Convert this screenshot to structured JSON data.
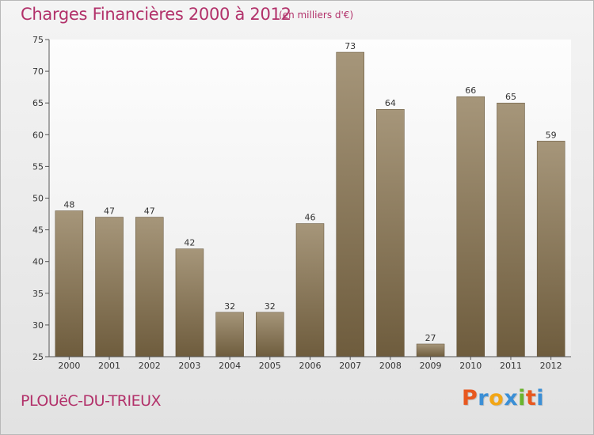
{
  "header": {
    "title": "Charges Financières 2000 à 2012",
    "subtitle": "(en milliers d'€)"
  },
  "footer": {
    "commune": "PLOUëC-DU-TRIEUX",
    "logo_text": "Proxiti"
  },
  "colors": {
    "title": "#b2316a",
    "bar_top": "#a6967a",
    "bar_bottom": "#6e5c3d",
    "logo_letters": [
      "#e8581f",
      "#3b8fd6",
      "#f2a616",
      "#3b8fd6",
      "#6ab42d",
      "#e8581f",
      "#3b8fd6"
    ]
  },
  "chart_data": {
    "type": "bar",
    "title": "Charges Financières 2000 à 2012",
    "subtitle": "(en milliers d'€)",
    "categories": [
      "2000",
      "2001",
      "2002",
      "2003",
      "2004",
      "2005",
      "2006",
      "2007",
      "2008",
      "2009",
      "2010",
      "2011",
      "2012"
    ],
    "values": [
      48,
      47,
      47,
      42,
      32,
      32,
      46,
      73,
      64,
      27,
      66,
      65,
      59
    ],
    "ylim": [
      25,
      75
    ],
    "yticks": [
      25,
      30,
      35,
      40,
      45,
      50,
      55,
      60,
      65,
      70,
      75
    ],
    "grid": false,
    "legend": "none"
  }
}
